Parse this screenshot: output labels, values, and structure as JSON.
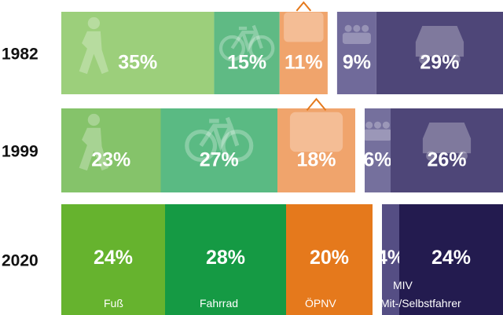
{
  "chart_data": {
    "type": "bar",
    "stacked": "100%",
    "orientation": "horizontal",
    "categories": [
      "1982",
      "1999",
      "2020"
    ],
    "series": [
      {
        "name": "Fuß",
        "icon": "pedestrian-icon",
        "values": [
          35,
          23,
          24
        ],
        "colors": [
          "#9ccf7b",
          "#85c36a",
          "#66b32e"
        ]
      },
      {
        "name": "Fahrrad",
        "icon": "bicycle-icon",
        "values": [
          15,
          27,
          28
        ],
        "colors": [
          "#5fba84",
          "#5aba83",
          "#159a44"
        ]
      },
      {
        "name": "ÖPNV",
        "icon": "tram-icon",
        "values": [
          11,
          18,
          20
        ],
        "colors": [
          "#f0a46c",
          "#f0a46c",
          "#e5791c"
        ]
      },
      {
        "name": "MIV",
        "icon": "carpool-icon",
        "values": [
          9,
          6,
          4
        ],
        "colors": [
          "#706a9a",
          "#75709d",
          "#554e84"
        ]
      },
      {
        "name": "Mit-/Selbstfahrer",
        "icon": "car-icon",
        "values": [
          29,
          26,
          24
        ],
        "colors": [
          "#4e4678",
          "#4e4678",
          "#231b4f"
        ]
      }
    ],
    "legend_labels": [
      "Fuß",
      "Fahrrad",
      "ÖPNV",
      "MIV",
      "Mit-/Selbstfahrer"
    ],
    "value_suffix": "%",
    "gap_between": "ÖPNV|MIV"
  }
}
